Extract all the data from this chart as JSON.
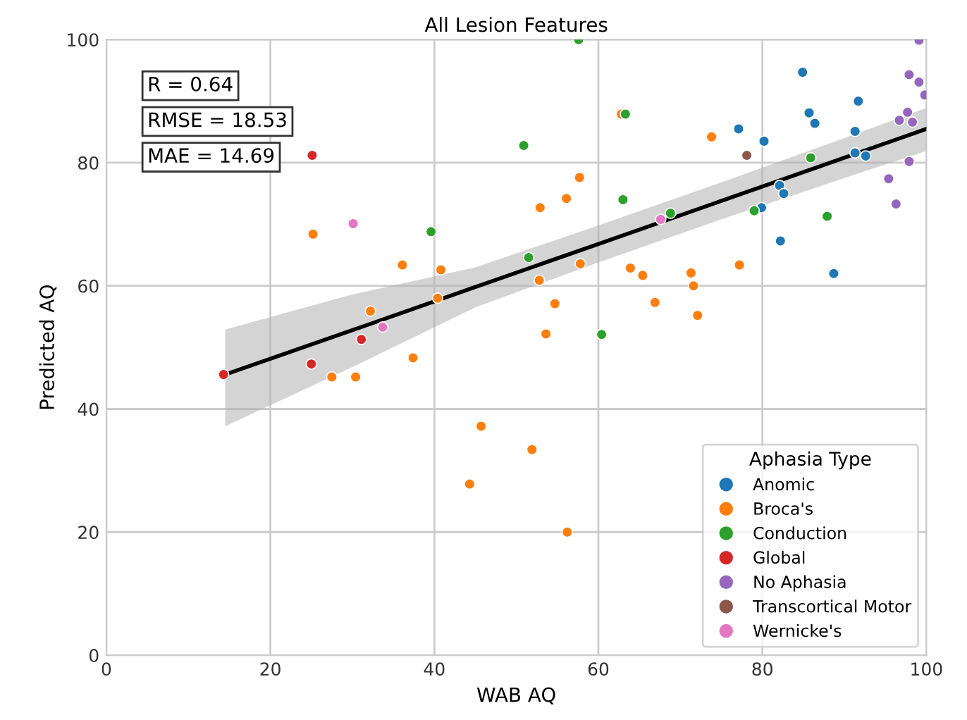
{
  "chart_data": {
    "type": "scatter",
    "title": "All Lesion Features",
    "xlabel": "WAB AQ",
    "ylabel": "Predicted AQ",
    "legend_title": "Aphasia Type",
    "annotations": [
      "R = 0.64",
      "RMSE = 18.53",
      "MAE = 14.69"
    ],
    "xlim": [
      0,
      100
    ],
    "ylim": [
      0,
      100
    ],
    "xticks": [
      0,
      20,
      40,
      60,
      80,
      100
    ],
    "yticks": [
      0,
      20,
      40,
      60,
      80,
      100
    ],
    "grid": true,
    "legend": "bottom right",
    "marker": "circle",
    "series": [
      {
        "type": "line",
        "color": "#000000",
        "marker": "none",
        "x": [
          14.5,
          30,
          45,
          60,
          75,
          90,
          100
        ],
        "values": [
          45.6,
          52.8,
          59.8,
          66.8,
          73.8,
          80.8,
          85.5
        ],
        "lower": [
          37.2,
          46.8,
          56.5,
          63.8,
          70.8,
          77.5,
          81.9
        ],
        "upper": [
          52.9,
          58.6,
          63.0,
          69.8,
          76.8,
          84.0,
          88.9
        ]
      },
      {
        "name": "Anomic",
        "color": "#1f77b4",
        "x": [
          84.9,
          85.7,
          86.4,
          91.7,
          91.3,
          77.1,
          80.2,
          91.3,
          92.6,
          82.1,
          82.6,
          79.9,
          82.2,
          88.7
        ],
        "values": [
          94.7,
          88.1,
          86.4,
          90.0,
          85.1,
          85.5,
          83.5,
          81.6,
          81.1,
          76.3,
          75.0,
          72.7,
          67.3,
          62.0
        ]
      },
      {
        "name": "Broca's",
        "color": "#ff7f0e",
        "x": [
          25.2,
          36.1,
          40.8,
          40.4,
          32.2,
          37.4,
          27.5,
          30.4,
          45.7,
          51.9,
          44.3,
          56.2,
          62.8,
          73.8,
          57.7,
          56.1,
          52.9,
          77.2,
          57.8,
          52.8,
          63.9,
          65.4,
          71.3,
          71.6,
          54.7,
          66.9,
          72.1,
          53.6
        ],
        "values": [
          68.4,
          63.4,
          62.6,
          58.0,
          55.9,
          48.3,
          45.2,
          45.2,
          37.2,
          33.4,
          27.8,
          20.0,
          87.9,
          84.2,
          77.6,
          74.2,
          72.7,
          63.4,
          63.6,
          60.9,
          62.9,
          61.7,
          62.1,
          60.0,
          57.1,
          57.3,
          55.2,
          52.2
        ]
      },
      {
        "name": "Conduction",
        "color": "#2ca02c",
        "x": [
          50.9,
          39.6,
          51.5,
          57.6,
          63.3,
          63.0,
          68.8,
          60.4,
          85.9,
          79.0,
          87.9
        ],
        "values": [
          82.8,
          68.8,
          64.6,
          100,
          87.9,
          74.0,
          71.8,
          52.1,
          80.8,
          72.2,
          71.3
        ]
      },
      {
        "name": "Global",
        "color": "#d62728",
        "x": [
          25.1,
          31.1,
          25.0,
          14.3
        ],
        "values": [
          81.2,
          51.3,
          47.3,
          45.6
        ]
      },
      {
        "name": "No Aphasia",
        "color": "#9467bd",
        "x": [
          99.1,
          97.9,
          99.1,
          99.8,
          96.7,
          97.7,
          98.3,
          97.9,
          95.4,
          96.3
        ],
        "values": [
          99.9,
          94.3,
          93.1,
          91.0,
          86.9,
          88.2,
          86.6,
          80.2,
          77.4,
          73.3
        ]
      },
      {
        "name": "Transcortical Motor",
        "color": "#8c564b",
        "x": [
          78.1
        ],
        "values": [
          81.2
        ]
      },
      {
        "name": "Wernicke's",
        "color": "#e377c2",
        "x": [
          30.1,
          33.7,
          67.6
        ],
        "values": [
          70.1,
          53.3,
          70.8
        ]
      }
    ]
  }
}
